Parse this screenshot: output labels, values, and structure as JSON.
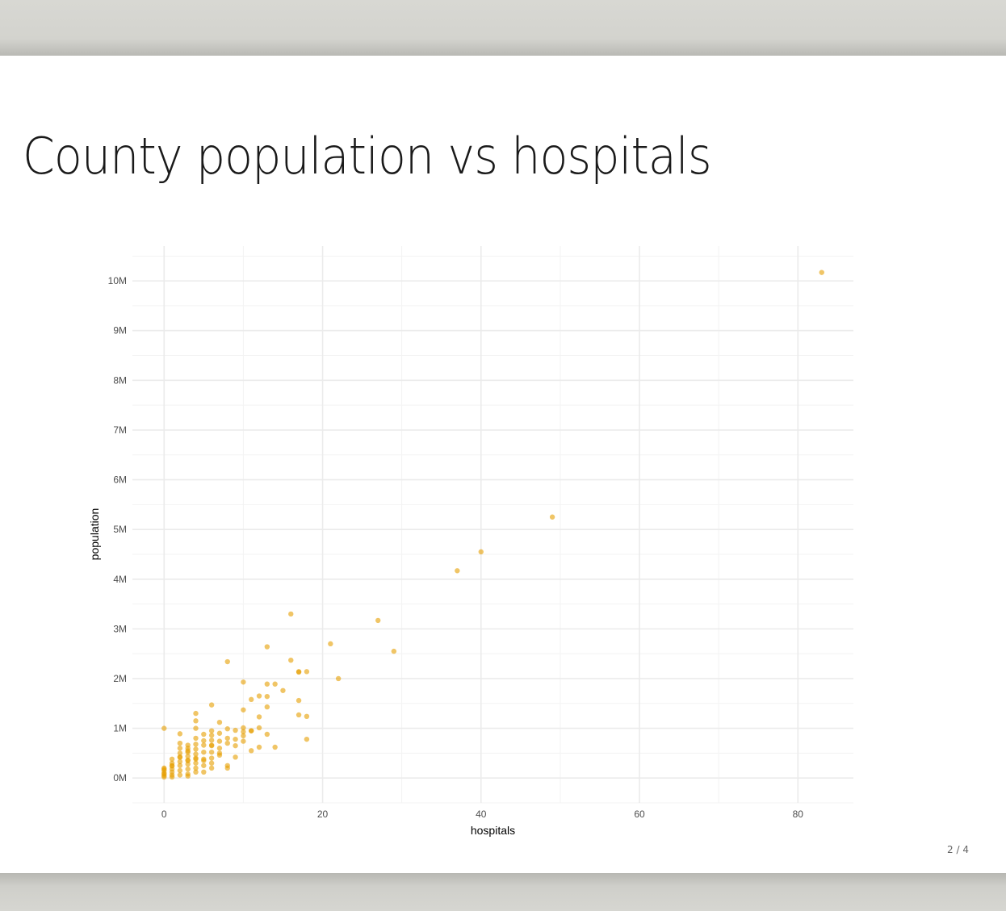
{
  "slide": {
    "title": "County population vs hospitals",
    "page_number": "2 / 4"
  },
  "colors": {
    "point": "#e69f00",
    "grid": "#ebebeb",
    "background": "#ffffff"
  },
  "chart_data": {
    "type": "scatter",
    "title": "",
    "xlabel": "hospitals",
    "ylabel": "population",
    "xlim": [
      -4,
      87
    ],
    "ylim": [
      -500000,
      10700000
    ],
    "x_ticks": [
      0,
      20,
      40,
      60,
      80
    ],
    "x_tick_labels": [
      "0",
      "20",
      "40",
      "60",
      "80"
    ],
    "y_ticks": [
      0,
      1000000,
      2000000,
      3000000,
      4000000,
      5000000,
      6000000,
      7000000,
      8000000,
      9000000,
      10000000
    ],
    "y_tick_labels": [
      "0M",
      "1M",
      "2M",
      "3M",
      "4M",
      "5M",
      "6M",
      "7M",
      "8M",
      "9M",
      "10M"
    ],
    "grid": true,
    "legend": "none",
    "series": [
      {
        "x": [
          83,
          49,
          40,
          37,
          16,
          27,
          21,
          29,
          13,
          8,
          16,
          17,
          17,
          18,
          22,
          10,
          13,
          14,
          15,
          11,
          12,
          13,
          17,
          6,
          13,
          4,
          10,
          12,
          17,
          18,
          4,
          7,
          10,
          12,
          4,
          0,
          8,
          9,
          10,
          11,
          14,
          2,
          13,
          6,
          11,
          9,
          18,
          5,
          7,
          10,
          8,
          12,
          6,
          9,
          3,
          7,
          8,
          6,
          5,
          4,
          3,
          2,
          1,
          0,
          0,
          0,
          0,
          0,
          0,
          0,
          1,
          1,
          1,
          1,
          1,
          1,
          1,
          2,
          2,
          2,
          2,
          2,
          2,
          2,
          2,
          3,
          3,
          3,
          3,
          3,
          3,
          3,
          3,
          3,
          4,
          4,
          4,
          4,
          4,
          4,
          4,
          4,
          5,
          5,
          5,
          5,
          5,
          5,
          6,
          6,
          6,
          6,
          6,
          6,
          7,
          7,
          7,
          8,
          8,
          9,
          10,
          11
        ],
        "y": [
          10170000,
          5250000,
          4550000,
          4170000,
          3300000,
          3170000,
          2700000,
          2550000,
          2640000,
          2340000,
          2370000,
          2140000,
          2130000,
          2140000,
          2000000,
          1930000,
          1890000,
          1890000,
          1760000,
          1580000,
          1650000,
          1640000,
          1560000,
          1470000,
          1430000,
          1300000,
          1370000,
          1230000,
          1270000,
          1240000,
          1150000,
          1120000,
          1010000,
          1010000,
          1000000,
          1000000,
          990000,
          960000,
          930000,
          950000,
          620000,
          890000,
          880000,
          860000,
          550000,
          780000,
          780000,
          750000,
          740000,
          740000,
          700000,
          620000,
          660000,
          420000,
          550000,
          460000,
          250000,
          300000,
          350000,
          380000,
          350000,
          420000,
          250000,
          50000,
          100000,
          150000,
          200000,
          20000,
          80000,
          180000,
          60000,
          120000,
          180000,
          240000,
          300000,
          380000,
          20000,
          60000,
          150000,
          250000,
          330000,
          420000,
          500000,
          600000,
          700000,
          80000,
          180000,
          280000,
          360000,
          440000,
          520000,
          600000,
          660000,
          40000,
          120000,
          200000,
          300000,
          400000,
          480000,
          580000,
          680000,
          800000,
          120000,
          250000,
          380000,
          520000,
          660000,
          880000,
          200000,
          400000,
          520000,
          650000,
          760000,
          950000,
          500000,
          600000,
          900000,
          200000,
          800000,
          650000,
          850000,
          950000
        ]
      }
    ]
  }
}
